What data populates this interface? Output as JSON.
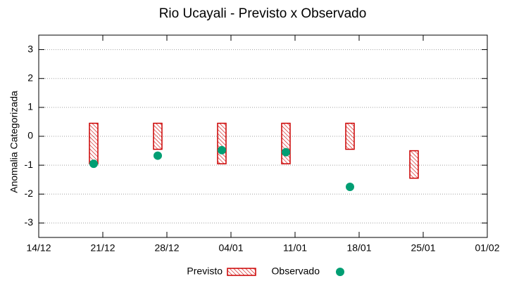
{
  "chart_data": {
    "type": "range",
    "title": "Rio Ucayali - Previsto x Observado",
    "ylabel": "Anomalia Categorizada",
    "x": [
      6,
      13,
      20,
      27,
      34,
      41
    ],
    "xlim": [
      0,
      49
    ],
    "xticks": [
      {
        "value": 0,
        "label": "14/12"
      },
      {
        "value": 7,
        "label": "21/12"
      },
      {
        "value": 14,
        "label": "28/12"
      },
      {
        "value": 21,
        "label": "04/01"
      },
      {
        "value": 28,
        "label": "11/01"
      },
      {
        "value": 35,
        "label": "18/01"
      },
      {
        "value": 42,
        "label": "25/01"
      },
      {
        "value": 49,
        "label": "01/02"
      }
    ],
    "ylim": [
      -3.5,
      3.5
    ],
    "yticks": [
      -3,
      -2,
      -1,
      0,
      1,
      2,
      3
    ],
    "grid": true,
    "series": [
      {
        "name": "Previsto",
        "color": "#cc0000",
        "high": [
          0.45,
          0.45,
          0.45,
          0.45,
          0.45,
          -0.5
        ],
        "low": [
          -0.95,
          -0.45,
          -0.95,
          -0.95,
          -0.45,
          -1.45
        ]
      },
      {
        "name": "Observado",
        "color": "#009e73",
        "values": [
          -0.95,
          -0.67,
          -0.48,
          -0.55,
          -1.75,
          null
        ]
      }
    ],
    "legend": "bottom"
  }
}
